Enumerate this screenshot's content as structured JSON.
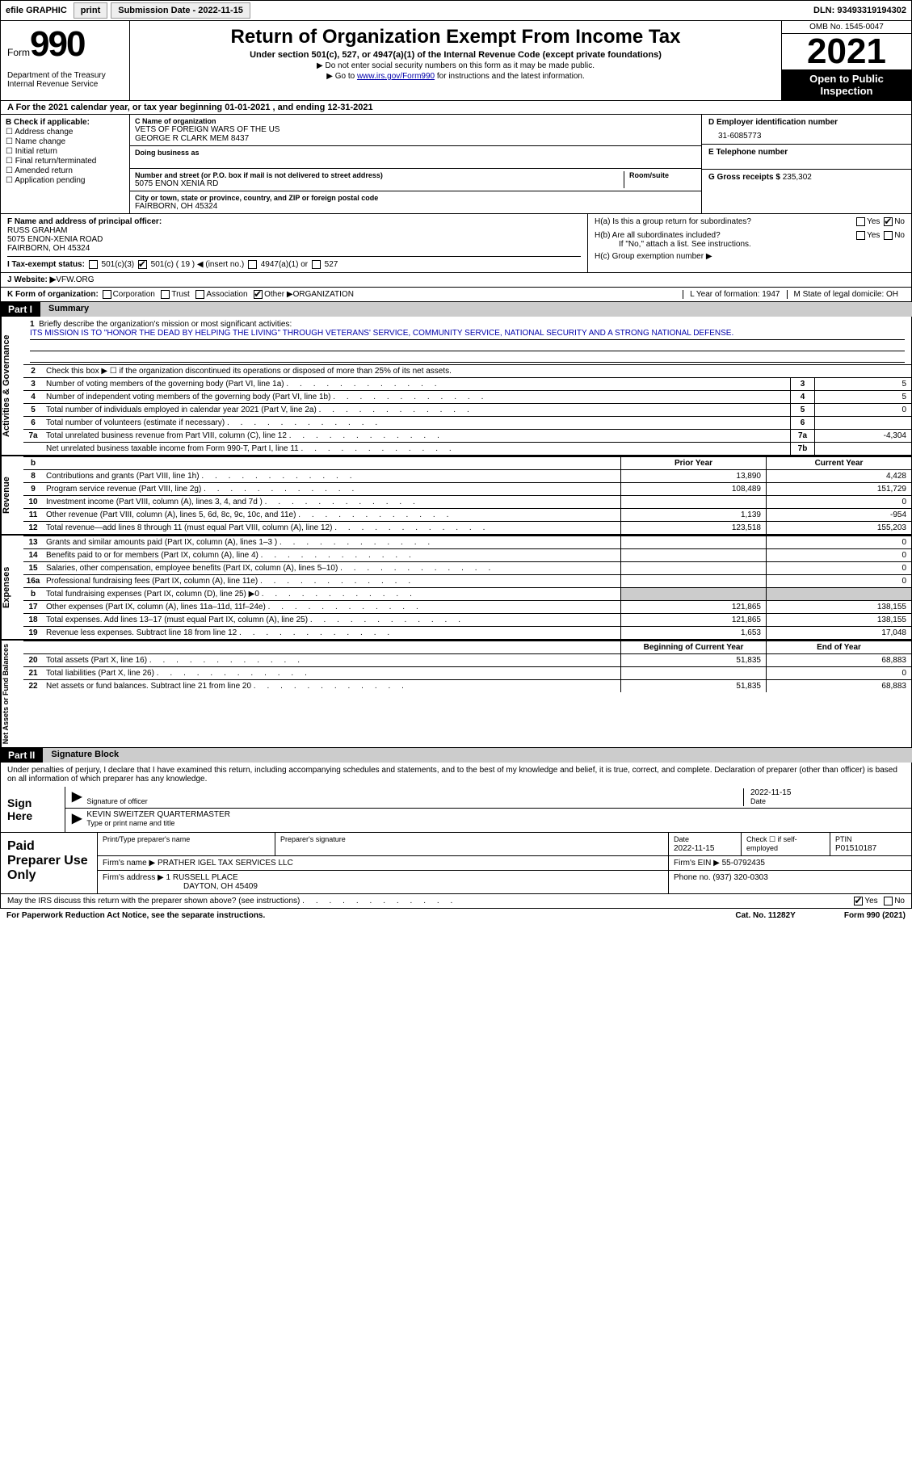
{
  "topbar": {
    "efile": "efile GRAPHIC",
    "print": "print",
    "submission": "Submission Date - 2022-11-15",
    "dln": "DLN: 93493319194302"
  },
  "header": {
    "form_label": "Form",
    "form_num": "990",
    "title": "Return of Organization Exempt From Income Tax",
    "subtitle": "Under section 501(c), 527, or 4947(a)(1) of the Internal Revenue Code (except private foundations)",
    "note1": "▶ Do not enter social security numbers on this form as it may be made public.",
    "note2_pre": "▶ Go to ",
    "note2_link": "www.irs.gov/Form990",
    "note2_post": " for instructions and the latest information.",
    "omb": "OMB No. 1545-0047",
    "year": "2021",
    "open": "Open to Public Inspection",
    "dept": "Department of the Treasury",
    "irs": "Internal Revenue Service"
  },
  "lineA": "A For the 2021 calendar year, or tax year beginning 01-01-2021    , and ending 12-31-2021",
  "colB": {
    "title": "B Check if applicable:",
    "opts": [
      "Address change",
      "Name change",
      "Initial return",
      "Final return/terminated",
      "Amended return",
      "Application pending"
    ]
  },
  "colC": {
    "name_lbl": "C Name of organization",
    "name1": "VETS OF FOREIGN WARS OF THE US",
    "name2": "GEORGE R CLARK MEM 8437",
    "dba_lbl": "Doing business as",
    "addr_lbl": "Number and street (or P.O. box if mail is not delivered to street address)",
    "room_lbl": "Room/suite",
    "addr": "5075 ENON XENIA RD",
    "city_lbl": "City or town, state or province, country, and ZIP or foreign postal code",
    "city": "FAIRBORN, OH  45324"
  },
  "colD": {
    "ein_lbl": "D Employer identification number",
    "ein": "31-6085773",
    "tel_lbl": "E Telephone number",
    "gross_lbl": "G Gross receipts $",
    "gross": "235,302"
  },
  "sectF": {
    "f_lbl": "F  Name and address of principal officer:",
    "f_name": "RUSS GRAHAM",
    "f_addr1": "5075 ENON-XENIA ROAD",
    "f_addr2": "FAIRBORN, OH  45324",
    "i_lbl": "I  Tax-exempt status:",
    "i_501c3": "501(c)(3)",
    "i_501c": "501(c) ( 19 ) ◀ (insert no.)",
    "i_4947": "4947(a)(1) or",
    "i_527": "527",
    "j_lbl": "J  Website: ▶",
    "j_val": "  VFW.ORG"
  },
  "sectH": {
    "ha": "H(a)  Is this a group return for subordinates?",
    "hb": "H(b)  Are all subordinates included?",
    "hb_note": "If \"No,\" attach a list. See instructions.",
    "hc": "H(c)  Group exemption number ▶",
    "yes": "Yes",
    "no": "No"
  },
  "rowK": {
    "k": "K Form of organization:",
    "corp": "Corporation",
    "trust": "Trust",
    "assoc": "Association",
    "other": "Other ▶",
    "other_val": "ORGANIZATION",
    "l": "L Year of formation: 1947",
    "m": "M State of legal domicile: OH"
  },
  "parts": {
    "p1": "Part I",
    "p1t": "Summary",
    "p2": "Part II",
    "p2t": "Signature Block"
  },
  "summary": {
    "tab1": "Activities & Governance",
    "tab2": "Revenue",
    "tab3": "Expenses",
    "tab4": "Net Assets or Fund Balances",
    "l1": "Briefly describe the organization's mission or most significant activities:",
    "mission": "ITS MISSION IS TO \"HONOR THE DEAD BY HELPING THE LIVING\" THROUGH VETERANS' SERVICE, COMMUNITY SERVICE, NATIONAL SECURITY AND A STRONG NATIONAL DEFENSE.",
    "l2": "Check this box ▶ ☐  if the organization discontinued its operations or disposed of more than 25% of its net assets.",
    "rows_ag": [
      {
        "n": "3",
        "t": "Number of voting members of the governing body (Part VI, line 1a)",
        "box": "3",
        "v": "5"
      },
      {
        "n": "4",
        "t": "Number of independent voting members of the governing body (Part VI, line 1b)",
        "box": "4",
        "v": "5"
      },
      {
        "n": "5",
        "t": "Total number of individuals employed in calendar year 2021 (Part V, line 2a)",
        "box": "5",
        "v": "0"
      },
      {
        "n": "6",
        "t": "Total number of volunteers (estimate if necessary)",
        "box": "6",
        "v": ""
      },
      {
        "n": "7a",
        "t": "Total unrelated business revenue from Part VIII, column (C), line 12",
        "box": "7a",
        "v": "-4,304"
      },
      {
        "n": "",
        "t": "Net unrelated business taxable income from Form 990-T, Part I, line 11",
        "box": "7b",
        "v": ""
      }
    ],
    "hdr_prior": "Prior Year",
    "hdr_curr": "Current Year",
    "rows_rev": [
      {
        "n": "8",
        "t": "Contributions and grants (Part VIII, line 1h)",
        "p": "13,890",
        "c": "4,428"
      },
      {
        "n": "9",
        "t": "Program service revenue (Part VIII, line 2g)",
        "p": "108,489",
        "c": "151,729"
      },
      {
        "n": "10",
        "t": "Investment income (Part VIII, column (A), lines 3, 4, and 7d )",
        "p": "",
        "c": "0"
      },
      {
        "n": "11",
        "t": "Other revenue (Part VIII, column (A), lines 5, 6d, 8c, 9c, 10c, and 11e)",
        "p": "1,139",
        "c": "-954"
      },
      {
        "n": "12",
        "t": "Total revenue—add lines 8 through 11 (must equal Part VIII, column (A), line 12)",
        "p": "123,518",
        "c": "155,203"
      }
    ],
    "rows_exp": [
      {
        "n": "13",
        "t": "Grants and similar amounts paid (Part IX, column (A), lines 1–3 )",
        "p": "",
        "c": "0"
      },
      {
        "n": "14",
        "t": "Benefits paid to or for members (Part IX, column (A), line 4)",
        "p": "",
        "c": "0"
      },
      {
        "n": "15",
        "t": "Salaries, other compensation, employee benefits (Part IX, column (A), lines 5–10)",
        "p": "",
        "c": "0"
      },
      {
        "n": "16a",
        "t": "Professional fundraising fees (Part IX, column (A), line 11e)",
        "p": "",
        "c": "0"
      },
      {
        "n": "b",
        "t": "Total fundraising expenses (Part IX, column (D), line 25) ▶0",
        "p": "GREY",
        "c": "GREY"
      },
      {
        "n": "17",
        "t": "Other expenses (Part IX, column (A), lines 11a–11d, 11f–24e)",
        "p": "121,865",
        "c": "138,155"
      },
      {
        "n": "18",
        "t": "Total expenses. Add lines 13–17 (must equal Part IX, column (A), line 25)",
        "p": "121,865",
        "c": "138,155"
      },
      {
        "n": "19",
        "t": "Revenue less expenses. Subtract line 18 from line 12",
        "p": "1,653",
        "c": "17,048"
      }
    ],
    "hdr_beg": "Beginning of Current Year",
    "hdr_end": "End of Year",
    "rows_net": [
      {
        "n": "20",
        "t": "Total assets (Part X, line 16)",
        "p": "51,835",
        "c": "68,883"
      },
      {
        "n": "21",
        "t": "Total liabilities (Part X, line 26)",
        "p": "",
        "c": "0"
      },
      {
        "n": "22",
        "t": "Net assets or fund balances. Subtract line 21 from line 20",
        "p": "51,835",
        "c": "68,883"
      }
    ]
  },
  "sig": {
    "decl": "Under penalties of perjury, I declare that I have examined this return, including accompanying schedules and statements, and to the best of my knowledge and belief, it is true, correct, and complete. Declaration of preparer (other than officer) is based on all information of which preparer has any knowledge.",
    "sign_here": "Sign Here",
    "sig_officer": "Signature of officer",
    "date": "Date",
    "date_val": "2022-11-15",
    "name": "KEVIN SWEITZER QUARTERMASTER",
    "name_lbl": "Type or print name and title"
  },
  "paid": {
    "title": "Paid Preparer Use Only",
    "h1": "Print/Type preparer's name",
    "h2": "Preparer's signature",
    "h3": "Date",
    "h3v": "2022-11-15",
    "h4": "Check ☐ if self-employed",
    "h5": "PTIN",
    "h5v": "P01510187",
    "firm_name_lbl": "Firm's name      ▶",
    "firm_name": "PRATHER IGEL TAX SERVICES LLC",
    "firm_ein_lbl": "Firm's EIN ▶",
    "firm_ein": "55-0792435",
    "firm_addr_lbl": "Firm's address ▶",
    "firm_addr1": "1 RUSSELL PLACE",
    "firm_addr2": "DAYTON, OH  45409",
    "phone_lbl": "Phone no.",
    "phone": "(937) 320-0303"
  },
  "footer": {
    "discuss": "May the IRS discuss this return with the preparer shown above? (see instructions)",
    "yes": "Yes",
    "no": "No",
    "pra": "For Paperwork Reduction Act Notice, see the separate instructions.",
    "cat": "Cat. No. 11282Y",
    "form": "Form 990 (2021)"
  }
}
